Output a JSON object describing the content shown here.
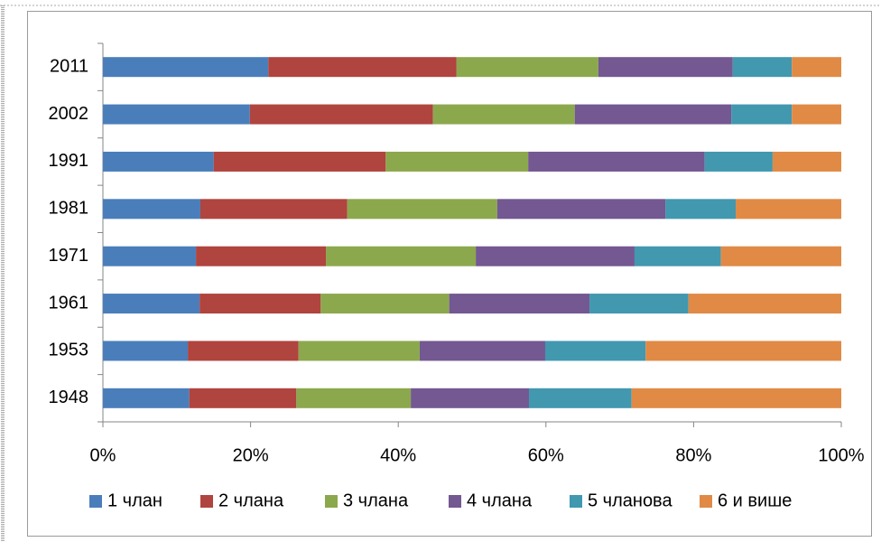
{
  "chart_data": {
    "type": "bar",
    "orientation": "horizontal",
    "stacked": true,
    "categories": [
      "1948",
      "1953",
      "1961",
      "1971",
      "1981",
      "1991",
      "2002",
      "2011"
    ],
    "series": [
      {
        "name": "1 члан",
        "color": "#4a7ebb",
        "values": [
          11.7,
          11.5,
          13.1,
          12.6,
          13.2,
          15.0,
          19.9,
          22.4
        ]
      },
      {
        "name": "2 члана",
        "color": "#b0443f",
        "values": [
          14.5,
          15.0,
          16.4,
          17.6,
          19.9,
          23.3,
          24.8,
          25.5
        ]
      },
      {
        "name": "3 члана",
        "color": "#8ca84d",
        "values": [
          15.5,
          16.4,
          17.4,
          20.3,
          20.3,
          19.3,
          19.2,
          19.2
        ]
      },
      {
        "name": "4 члана",
        "color": "#735891",
        "values": [
          16.0,
          17.0,
          19.0,
          21.5,
          22.8,
          23.9,
          21.2,
          18.2
        ]
      },
      {
        "name": "5 чланова",
        "color": "#4198af",
        "values": [
          13.9,
          13.6,
          13.4,
          11.7,
          9.5,
          9.2,
          8.2,
          8.0
        ]
      },
      {
        "name": "6 и више",
        "color": "#e08a45",
        "values": [
          28.4,
          26.5,
          20.7,
          16.3,
          14.3,
          9.3,
          6.7,
          6.7
        ]
      }
    ],
    "xlim": [
      0,
      100
    ],
    "xticks": [
      {
        "value": 0,
        "label": "0%"
      },
      {
        "value": 20,
        "label": "20%"
      },
      {
        "value": 40,
        "label": "40%"
      },
      {
        "value": 60,
        "label": "60%"
      },
      {
        "value": 80,
        "label": "80%"
      },
      {
        "value": 100,
        "label": "100%"
      }
    ],
    "grid": false,
    "legend": "bottom"
  }
}
